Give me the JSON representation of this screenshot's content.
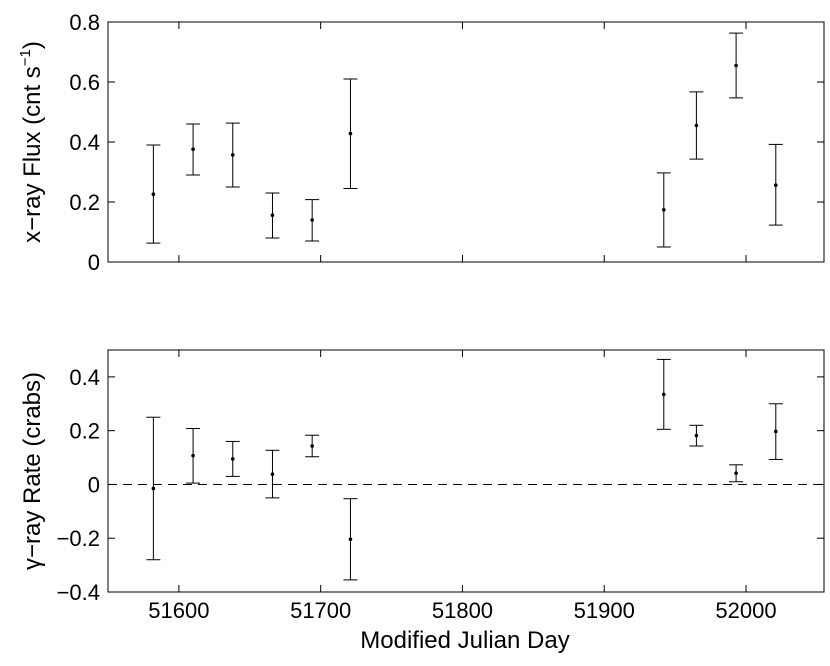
{
  "chart_data": [
    {
      "type": "scatter",
      "panel": "top",
      "ylabel": "x−ray Flux (cnt s",
      "ylabel_sup": "−1",
      "ylabel_close": ")",
      "xlim": [
        51550,
        52055
      ],
      "ylim": [
        0,
        0.8
      ],
      "yticks": [
        0,
        0.2,
        0.4,
        0.6,
        0.8
      ],
      "ytick_labels": [
        "0",
        "0.2",
        "0.4",
        "0.6",
        "0.8"
      ],
      "xticks": [
        51600,
        51700,
        51800,
        51900,
        52000
      ],
      "points": [
        {
          "x": 51582,
          "y": 0.226,
          "lo": 0.063,
          "hi": 0.39
        },
        {
          "x": 51610,
          "y": 0.376,
          "lo": 0.29,
          "hi": 0.46
        },
        {
          "x": 51638,
          "y": 0.357,
          "lo": 0.25,
          "hi": 0.463
        },
        {
          "x": 51666,
          "y": 0.156,
          "lo": 0.08,
          "hi": 0.23
        },
        {
          "x": 51694,
          "y": 0.14,
          "lo": 0.07,
          "hi": 0.208
        },
        {
          "x": 51721,
          "y": 0.428,
          "lo": 0.245,
          "hi": 0.61
        },
        {
          "x": 51942,
          "y": 0.174,
          "lo": 0.05,
          "hi": 0.297
        },
        {
          "x": 51965,
          "y": 0.455,
          "lo": 0.343,
          "hi": 0.567
        },
        {
          "x": 51993,
          "y": 0.655,
          "lo": 0.547,
          "hi": 0.763
        },
        {
          "x": 52021,
          "y": 0.256,
          "lo": 0.123,
          "hi": 0.392
        }
      ]
    },
    {
      "type": "scatter",
      "panel": "bottom",
      "xlabel": "Modified Julian Day",
      "ylabel": "γ−ray Rate (crabs)",
      "xlim": [
        51550,
        52055
      ],
      "ylim": [
        -0.4,
        0.5
      ],
      "yticks": [
        -0.4,
        -0.2,
        0,
        0.2,
        0.4
      ],
      "ytick_labels": [
        "−0.4",
        "−0.2",
        "0",
        "0.2",
        "0.4"
      ],
      "xticks": [
        51600,
        51700,
        51800,
        51900,
        52000
      ],
      "xtick_labels": [
        "51600",
        "51700",
        "51800",
        "51900",
        "52000"
      ],
      "reference_line": {
        "y": 0,
        "style": "dashed"
      },
      "points": [
        {
          "x": 51582,
          "y": -0.015,
          "lo": -0.28,
          "hi": 0.25
        },
        {
          "x": 51610,
          "y": 0.107,
          "lo": 0.005,
          "hi": 0.208
        },
        {
          "x": 51638,
          "y": 0.095,
          "lo": 0.03,
          "hi": 0.16
        },
        {
          "x": 51666,
          "y": 0.038,
          "lo": -0.05,
          "hi": 0.127
        },
        {
          "x": 51694,
          "y": 0.143,
          "lo": 0.103,
          "hi": 0.183
        },
        {
          "x": 51721,
          "y": -0.204,
          "lo": -0.355,
          "hi": -0.053
        },
        {
          "x": 51942,
          "y": 0.335,
          "lo": 0.205,
          "hi": 0.465
        },
        {
          "x": 51965,
          "y": 0.182,
          "lo": 0.143,
          "hi": 0.22
        },
        {
          "x": 51993,
          "y": 0.042,
          "lo": 0.01,
          "hi": 0.073
        },
        {
          "x": 52021,
          "y": 0.197,
          "lo": 0.093,
          "hi": 0.3
        }
      ]
    }
  ]
}
